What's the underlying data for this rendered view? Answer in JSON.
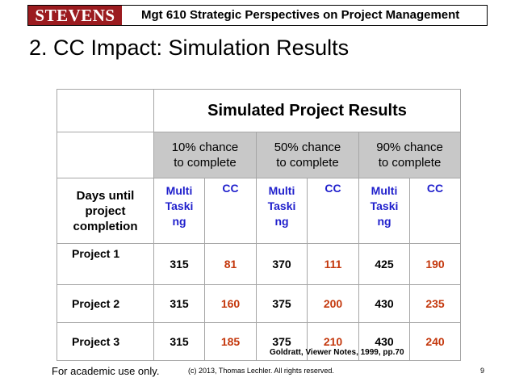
{
  "header": {
    "logo_text": "STEVENS",
    "course_title": "Mgt 610 Strategic Perspectives on Project Management",
    "logo_color": "#9b1b1f"
  },
  "slide_title": "2. CC Impact: Simulation Results",
  "table": {
    "heading": "Simulated Project Results",
    "chance_headers": [
      {
        "line1": "10% chance",
        "line2": "to complete"
      },
      {
        "line1": "50% chance",
        "line2": "to complete"
      },
      {
        "line1": "90% chance",
        "line2": "to complete"
      }
    ],
    "row_header": {
      "line1": "Days until",
      "line2": "project",
      "line3": "completion"
    },
    "col_multi": {
      "line1": "Multi",
      "line2": "Taski",
      "line3": "ng"
    },
    "col_cc": "CC",
    "rows": [
      {
        "project": "Project 1",
        "values": [
          "315",
          "81",
          "370",
          "111",
          "425",
          "190"
        ]
      },
      {
        "project": "Project 2",
        "values": [
          "315",
          "160",
          "375",
          "200",
          "430",
          "235"
        ]
      },
      {
        "project": "Project 3",
        "values": [
          "315",
          "185",
          "375",
          "210",
          "430",
          "240"
        ]
      }
    ],
    "colors": {
      "header_blue": "#1f1fcc",
      "cc_value": "#c4380d",
      "chance_bg": "#c8c8c8"
    }
  },
  "citation": "Goldratt, Viewer Notes, 1999, pp.70",
  "footer": {
    "left": "For academic use only.",
    "middle": "(c) 2013, Thomas Lechler. All rights reserved.",
    "page_number": "9"
  }
}
